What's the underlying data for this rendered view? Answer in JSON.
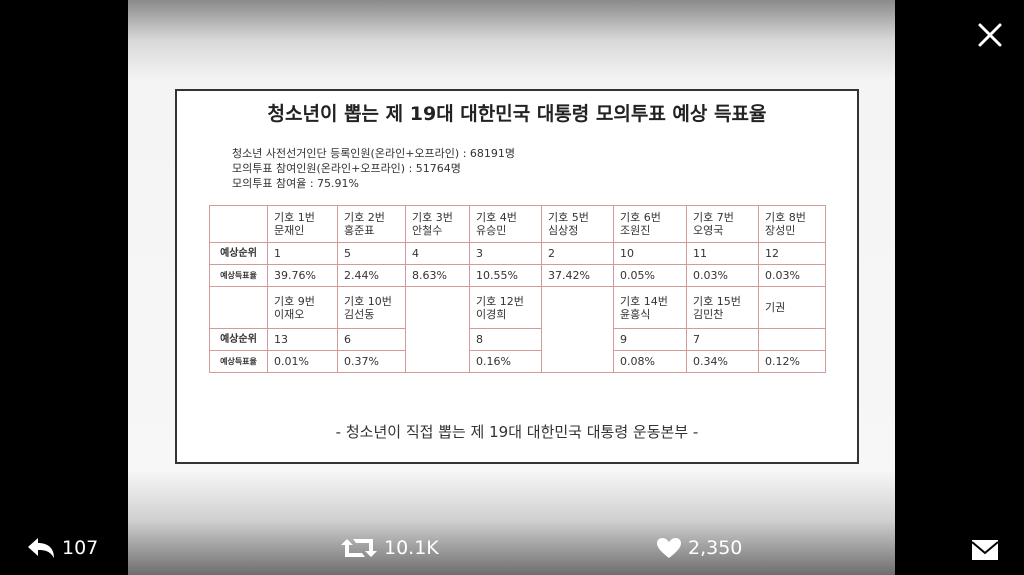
{
  "image": {
    "title": "청소년이 뽑는 제 19대 대한민국 대통령 모의투표 예상 득표율",
    "info": [
      "청소년 사전선거인단 등록인원(온라인+오프라인) : 68191명",
      "모의투표 참여인원(온라인+오프라인) : 51764명",
      "모의투표 참여율 : 75.91%"
    ],
    "table": {
      "row_labels": [
        "예상순위",
        "예상득표율"
      ],
      "block1": [
        {
          "number": "기호 1번",
          "name": "문재인",
          "rank": "1",
          "rate": "39.76%"
        },
        {
          "number": "기호 2번",
          "name": "홍준표",
          "rank": "5",
          "rate": "2.44%"
        },
        {
          "number": "기호 3번",
          "name": "안철수",
          "rank": "4",
          "rate": "8.63%"
        },
        {
          "number": "기호 4번",
          "name": "유승민",
          "rank": "3",
          "rate": "10.55%"
        },
        {
          "number": "기호 5번",
          "name": "심상정",
          "rank": "2",
          "rate": "37.42%"
        },
        {
          "number": "기호 6번",
          "name": "조원진",
          "rank": "10",
          "rate": "0.05%"
        },
        {
          "number": "기호 7번",
          "name": "오영국",
          "rank": "11",
          "rate": "0.03%"
        },
        {
          "number": "기호 8번",
          "name": "장성민",
          "rank": "12",
          "rate": "0.03%"
        }
      ],
      "block2": [
        {
          "number": "기호 9번",
          "name": "이재오",
          "rank": "13",
          "rate": "0.01%"
        },
        {
          "number": "기호 10번",
          "name": "김선동",
          "rank": "6",
          "rate": "0.37%"
        },
        null,
        {
          "number": "기호 12번",
          "name": "이경희",
          "rank": "8",
          "rate": "0.16%"
        },
        null,
        {
          "number": "기호 14번",
          "name": "윤홍식",
          "rank": "9",
          "rate": "0.08%"
        },
        {
          "number": "기호 15번",
          "name": "김민찬",
          "rank": "7",
          "rate": "0.34%"
        },
        {
          "name": "기권",
          "rate": "0.12%"
        }
      ]
    },
    "footer": "- 청소년이 직접 뽑는 제 19대 대한민국 대통령 운동본부 -"
  },
  "actions": {
    "replies": "107",
    "retweets": "10.1K",
    "likes": "2,350"
  }
}
